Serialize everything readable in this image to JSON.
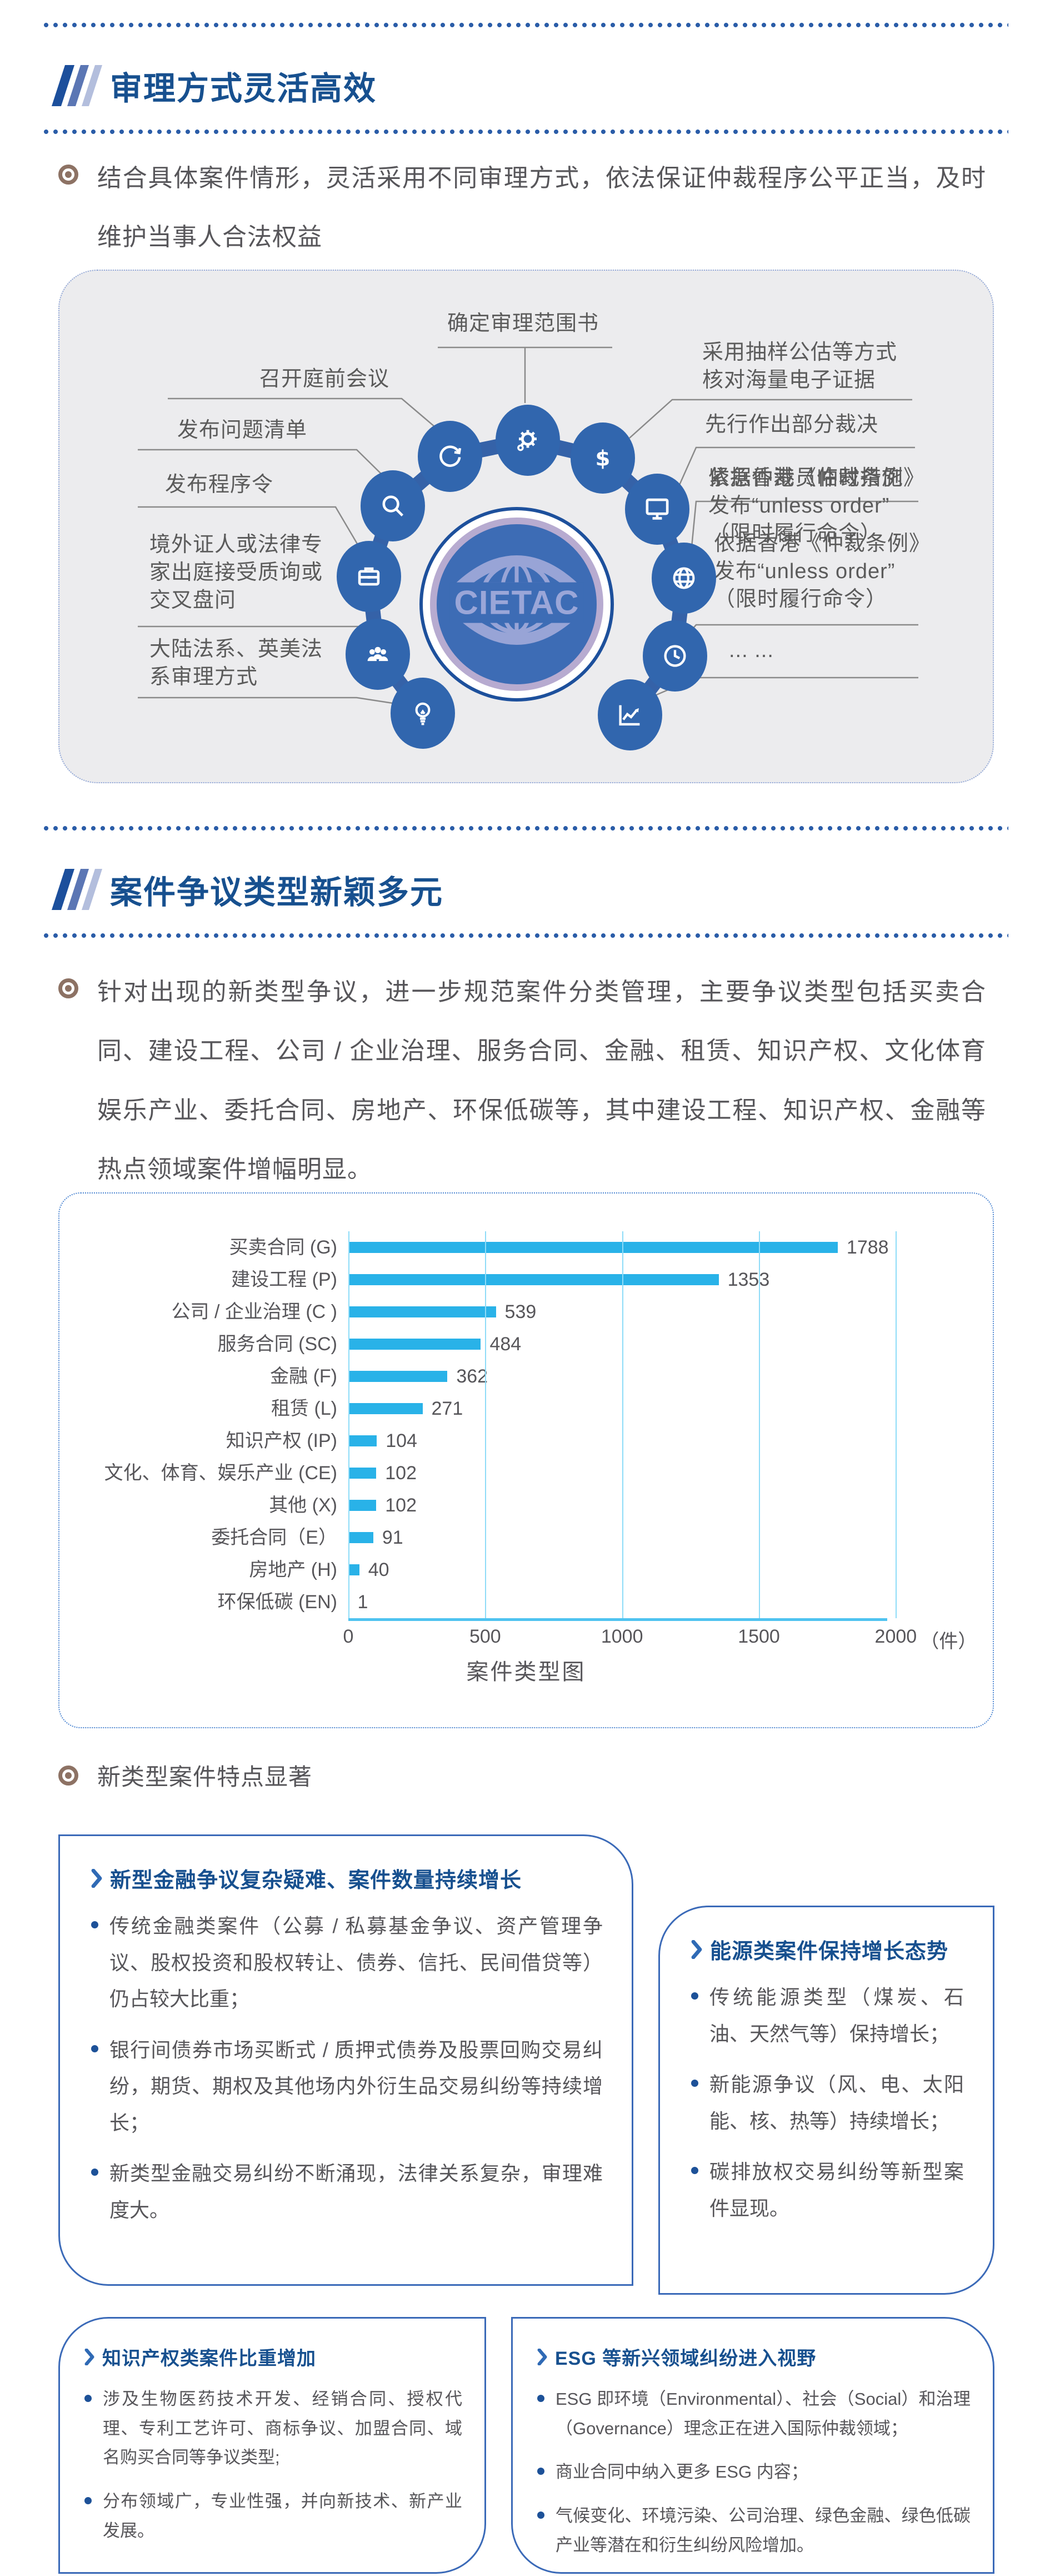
{
  "sections": [
    {
      "title": "审理方式灵活高效",
      "paragraph": "结合具体案件情形，灵活采用不同审理方式，依法保证仲裁程序公平正当，及时维护当事人合法权益"
    },
    {
      "title": "案件争议类型新颖多元",
      "paragraph": "针对出现的新类型争议，进一步规范案件分类管理，主要争议类型包括买卖合同、建设工程、公司 / 企业治理、服务合同、金融、租赁、知识产权、文化体育娱乐产业、委托合同、房地产、环保低碳等，其中建设工程、知识产权、金融等热点领域案件增幅明显。",
      "features_heading": "新类型案件特点显著"
    }
  ],
  "diagram": {
    "logo_text": "CIETAC",
    "labels": {
      "terms_of_reference": "确定审理范围书",
      "pre_hearing_meeting": "召开庭前会议",
      "question_list": "发布问题清单",
      "procedural_order": "发布程序令",
      "overseas_witness": "境外证人或法律专\n家出庭接受质询或\n交叉盘问",
      "legal_systems": "大陆法系、英美法\n系审理方式",
      "sampling_evidence": "采用抽样公估等方式\n核对海量电子证据",
      "partial_award": "先行作出部分裁决",
      "emergency_measures": "紧急仲裁员临时措施",
      "unless_order": "依据香港《仲裁条例》\n发布“unless order”\n（限时履行命令）",
      "more_ellipsis": "... ..."
    },
    "icons": [
      "sync",
      "gear",
      "dollar",
      "search",
      "monitor",
      "briefcase",
      "globe",
      "people",
      "clock",
      "lightbulb",
      "line-chart"
    ]
  },
  "chart_data": {
    "type": "bar",
    "orientation": "horizontal",
    "title": "案件类型图",
    "categories": [
      "买卖合同 (G)",
      "建设工程 (P)",
      "公司 / 企业治理 (C )",
      "服务合同 (SC)",
      "金融 (F)",
      "租赁 (L)",
      "知识产权 (IP)",
      "文化、体育、娱乐产业 (CE)",
      "其他 (X)",
      "委托合同（E）",
      "房地产 (H)",
      "环保低碳 (EN)"
    ],
    "values": [
      1788,
      1353,
      539,
      484,
      362,
      271,
      104,
      102,
      102,
      91,
      40,
      1
    ],
    "x_ticks": [
      0,
      500,
      1000,
      1500,
      2000
    ],
    "x_unit": "（件）",
    "xlim": [
      0,
      2050
    ],
    "bar_color": "#29b2e8",
    "grid": true,
    "legend": "none"
  },
  "cards": [
    {
      "title": "新型金融争议复杂疑难、案件数量持续增长",
      "bullets": [
        "传统金融类案件（公募 / 私募基金争议、资产管理争议、股权投资和股权转让、债券、信托、民间借贷等）仍占较大比重；",
        "银行间债券市场买断式 / 质押式债券及股票回购交易纠纷，期货、期权及其他场内外衍生品交易纠纷等持续增长；",
        "新类型金融交易纠纷不断涌现，法律关系复杂，审理难度大。"
      ]
    },
    {
      "title": "能源类案件保持增长态势",
      "bullets": [
        "传统能源类型（煤炭、石油、天然气等）保持增长；",
        "新能源争议（风、电、太阳能、核、热等）持续增长；",
        "碳排放权交易纠纷等新型案件显现。"
      ]
    },
    {
      "title": "知识产权类案件比重增加",
      "bullets": [
        "涉及生物医药技术开发、经销合同、授权代理、专利工艺许可、商标争议、加盟合同、域名购买合同等争议类型;",
        "分布领域广，专业性强，并向新技术、新产业发展。"
      ]
    },
    {
      "title": "ESG 等新兴领域纠纷进入视野",
      "bullets": [
        "ESG 即环境（Environmental）、社会（Social）和治理（Governance）理念正在进入国际仲裁领域；",
        "商业合同中纳入更多 ESG 内容；",
        "气候变化、环境污染、公司治理、绿色金融、绿色低碳产业等潜在和衍生纠纷风险增加。"
      ]
    }
  ]
}
